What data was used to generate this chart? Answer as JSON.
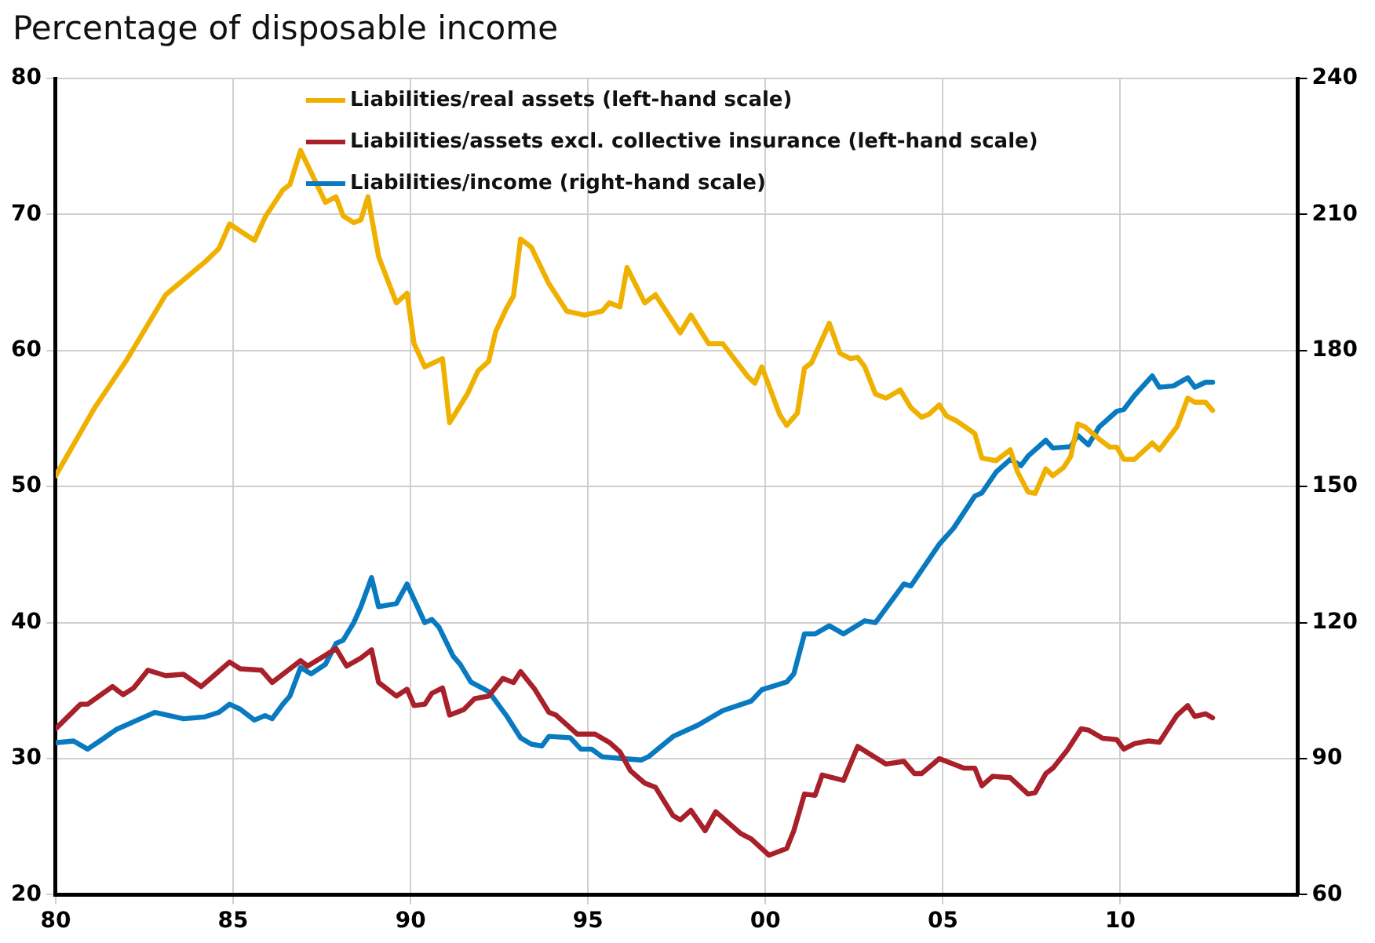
{
  "chart_data": {
    "type": "line",
    "subtitle": "Percentage of disposable income",
    "xlim": [
      1980,
      2015
    ],
    "xticks": [
      {
        "value": 1980,
        "label": "80"
      },
      {
        "value": 1985,
        "label": "85"
      },
      {
        "value": 1990,
        "label": "90"
      },
      {
        "value": 1995,
        "label": "95"
      },
      {
        "value": 2000,
        "label": "00"
      },
      {
        "value": 2005,
        "label": "05"
      },
      {
        "value": 2010,
        "label": "10"
      }
    ],
    "ylim": [
      20,
      80
    ],
    "yticks": [
      20,
      30,
      40,
      50,
      60,
      70,
      80
    ],
    "y2lim": [
      60,
      240
    ],
    "y2ticks": [
      60,
      90,
      120,
      150,
      180,
      210,
      240
    ],
    "grid": true,
    "legend": "top",
    "marker": "none",
    "line_style": "solid",
    "series": [
      {
        "name": "Liabilities/real assets (left-hand scale)",
        "color": "#f0b000",
        "x": [
          1980.0,
          1981.1,
          1982.0,
          1983.1,
          1984.2,
          1984.6,
          1984.9,
          1985.6,
          1985.9,
          1986.4,
          1986.6,
          1986.9,
          1987.6,
          1987.9,
          1988.1,
          1988.4,
          1988.6,
          1988.8,
          1989.1,
          1989.6,
          1989.9,
          1990.1,
          1990.4,
          1990.9,
          1991.1,
          1991.6,
          1991.9,
          1992.2,
          1992.4,
          1992.7,
          1992.9,
          1993.1,
          1993.4,
          1993.9,
          1994.4,
          1994.9,
          1995.4,
          1995.6,
          1995.9,
          1996.1,
          1996.6,
          1996.9,
          1997.6,
          1997.9,
          1998.4,
          1998.8,
          1999.5,
          1999.7,
          1999.9,
          2000.4,
          2000.6,
          2000.9,
          2001.1,
          2001.3,
          2001.8,
          2002.1,
          2002.4,
          2002.6,
          2002.8,
          2003.1,
          2003.4,
          2003.8,
          2004.1,
          2004.4,
          2004.6,
          2004.9,
          2005.1,
          2005.4,
          2005.9,
          2006.1,
          2006.5,
          2006.9,
          2007.1,
          2007.4,
          2007.6,
          2007.9,
          2008.1,
          2008.4,
          2008.6,
          2008.8,
          2009.0,
          2009.4,
          2009.7,
          2009.9,
          2010.1,
          2010.4,
          2010.9,
          2011.1,
          2011.6,
          2011.9,
          2012.1,
          2012.4,
          2012.6
        ],
        "values": [
          50.8,
          55.8,
          59.3,
          64.1,
          66.5,
          67.5,
          69.3,
          68.1,
          69.8,
          71.8,
          72.2,
          74.7,
          70.9,
          71.3,
          69.9,
          69.4,
          69.6,
          71.3,
          66.9,
          63.5,
          64.2,
          60.5,
          58.8,
          59.4,
          54.7,
          56.8,
          58.5,
          59.2,
          61.4,
          63.1,
          64.0,
          68.2,
          67.6,
          64.9,
          62.9,
          62.6,
          62.9,
          63.5,
          63.2,
          66.1,
          63.5,
          64.1,
          61.3,
          62.6,
          60.5,
          60.5,
          58.1,
          57.6,
          58.8,
          55.3,
          54.5,
          55.4,
          58.7,
          59.1,
          62.0,
          59.8,
          59.4,
          59.5,
          58.8,
          56.8,
          56.5,
          57.1,
          55.8,
          55.1,
          55.3,
          56.0,
          55.2,
          54.8,
          53.9,
          52.1,
          51.9,
          52.7,
          51.1,
          49.6,
          49.5,
          51.3,
          50.8,
          51.4,
          52.2,
          54.6,
          54.4,
          53.5,
          52.9,
          52.9,
          52.0,
          52.0,
          53.2,
          52.7,
          54.4,
          56.5,
          56.2,
          56.2,
          55.6
        ]
      },
      {
        "name": "Liabilities/assets excl. collective insurance (left-hand scale)",
        "color": "#a8202a",
        "x": [
          1980.0,
          1980.7,
          1980.9,
          1981.6,
          1981.9,
          1982.2,
          1982.6,
          1983.1,
          1983.6,
          1984.1,
          1984.5,
          1984.9,
          1985.2,
          1985.8,
          1986.1,
          1986.5,
          1986.9,
          1987.1,
          1987.6,
          1987.9,
          1988.2,
          1988.6,
          1988.9,
          1989.1,
          1989.6,
          1989.9,
          1990.1,
          1990.4,
          1990.6,
          1990.9,
          1991.1,
          1991.5,
          1991.8,
          1992.2,
          1992.6,
          1992.9,
          1993.1,
          1993.5,
          1993.9,
          1994.1,
          1994.7,
          1995.2,
          1995.6,
          1995.9,
          1996.2,
          1996.6,
          1996.9,
          1997.4,
          1997.6,
          1997.9,
          1998.3,
          1998.6,
          1999.3,
          1999.6,
          2000.1,
          2000.6,
          2000.8,
          2001.1,
          2001.4,
          2001.6,
          2002.2,
          2002.6,
          2002.9,
          2003.4,
          2003.9,
          2004.2,
          2004.4,
          2004.9,
          2005.6,
          2005.9,
          2006.1,
          2006.4,
          2006.9,
          2007.4,
          2007.6,
          2007.9,
          2008.1,
          2008.5,
          2008.9,
          2009.1,
          2009.5,
          2009.9,
          2010.1,
          2010.4,
          2010.8,
          2011.1,
          2011.3,
          2011.6,
          2011.9,
          2012.1,
          2012.4,
          2012.6
        ],
        "values": [
          32.2,
          34.0,
          34.0,
          35.3,
          34.7,
          35.2,
          36.5,
          36.1,
          36.2,
          35.3,
          36.2,
          37.1,
          36.6,
          36.5,
          35.6,
          36.4,
          37.2,
          36.8,
          37.6,
          38.1,
          36.8,
          37.4,
          38.0,
          35.6,
          34.6,
          35.1,
          33.9,
          34.0,
          34.8,
          35.2,
          33.2,
          33.6,
          34.4,
          34.6,
          35.9,
          35.6,
          36.4,
          35.1,
          33.4,
          33.2,
          31.8,
          31.8,
          31.2,
          30.5,
          29.1,
          28.2,
          27.9,
          25.8,
          25.5,
          26.2,
          24.7,
          26.1,
          24.5,
          24.1,
          22.9,
          23.4,
          24.7,
          27.4,
          27.3,
          28.8,
          28.4,
          30.9,
          30.4,
          29.6,
          29.8,
          28.9,
          28.9,
          30.0,
          29.3,
          29.3,
          28.0,
          28.7,
          28.6,
          27.4,
          27.5,
          28.9,
          29.3,
          30.6,
          32.2,
          32.1,
          31.5,
          31.4,
          30.7,
          31.1,
          31.3,
          31.2,
          32.0,
          33.2,
          33.9,
          33.1,
          33.3,
          33.0
        ]
      },
      {
        "name": "Liabilities/income (right-hand scale)",
        "color": "#0a7ac0",
        "axis": "y2",
        "x": [
          1980.0,
          1980.5,
          1980.9,
          1981.3,
          1981.7,
          1982.3,
          1982.8,
          1983.6,
          1984.2,
          1984.6,
          1984.9,
          1985.2,
          1985.6,
          1985.9,
          1986.1,
          1986.4,
          1986.6,
          1986.9,
          1987.2,
          1987.6,
          1987.9,
          1988.1,
          1988.4,
          1988.6,
          1988.9,
          1989.1,
          1989.6,
          1989.9,
          1990.4,
          1990.6,
          1990.8,
          1991.2,
          1991.4,
          1991.7,
          1992.2,
          1992.7,
          1993.1,
          1993.4,
          1993.7,
          1993.9,
          1994.5,
          1994.8,
          1995.1,
          1995.4,
          1996.0,
          1996.5,
          1996.7,
          1997.4,
          1998.1,
          1998.8,
          1999.6,
          1999.9,
          2000.6,
          2000.8,
          2001.1,
          2001.4,
          2001.8,
          2002.2,
          2002.8,
          2003.1,
          2003.9,
          2004.1,
          2004.9,
          2005.3,
          2005.9,
          2006.1,
          2006.5,
          2006.9,
          2007.2,
          2007.4,
          2007.9,
          2008.1,
          2008.6,
          2008.8,
          2009.1,
          2009.4,
          2009.9,
          2010.1,
          2010.4,
          2010.9,
          2011.1,
          2011.5,
          2011.9,
          2012.1,
          2012.4,
          2012.6
        ],
        "values": [
          93.5,
          93.9,
          92.1,
          94.2,
          96.4,
          98.5,
          100.2,
          98.8,
          99.2,
          100.2,
          102.0,
          100.9,
          98.5,
          99.5,
          98.8,
          102.0,
          103.8,
          110.1,
          108.7,
          110.8,
          115.4,
          116.1,
          120.0,
          123.5,
          129.9,
          123.5,
          124.2,
          128.5,
          120.0,
          120.7,
          119.0,
          112.6,
          110.8,
          106.9,
          104.8,
          99.5,
          94.6,
          93.2,
          92.8,
          94.9,
          94.6,
          92.1,
          92.1,
          90.4,
          90.0,
          89.7,
          90.4,
          94.9,
          97.4,
          100.6,
          102.7,
          105.2,
          106.9,
          108.7,
          117.5,
          117.5,
          119.3,
          117.5,
          120.4,
          120.0,
          128.5,
          128.1,
          137.3,
          140.8,
          147.9,
          148.6,
          153.2,
          156.0,
          154.6,
          156.7,
          160.2,
          158.5,
          158.8,
          161.3,
          159.2,
          163.1,
          166.6,
          167.0,
          170.1,
          174.4,
          171.9,
          172.2,
          174.0,
          171.9,
          173.0,
          173.0
        ]
      }
    ]
  }
}
